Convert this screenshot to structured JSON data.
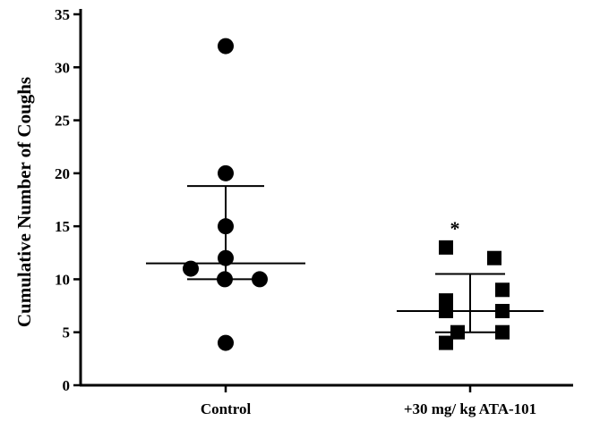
{
  "chart_data": {
    "type": "scatter",
    "title": "",
    "xlabel": "",
    "ylabel": "Cumulative Number of Coughs",
    "ylim": [
      0,
      35
    ],
    "yticks": [
      0,
      5,
      10,
      15,
      20,
      25,
      30,
      35
    ],
    "grid": false,
    "categories": [
      "Control",
      "+30 mg/ kg ATA-101"
    ],
    "groups": [
      {
        "category": "Control",
        "marker": "circle",
        "points": [
          32,
          20,
          15,
          12,
          11,
          10,
          10,
          4
        ],
        "median": 11.5,
        "error_low": 10,
        "error_high": 18.8
      },
      {
        "category": "+30 mg/ kg ATA-101",
        "marker": "square",
        "points": [
          13,
          12,
          9,
          8,
          7,
          7,
          5,
          5,
          4
        ],
        "median": 7,
        "error_low": 5,
        "error_high": 10.5
      }
    ],
    "annotations": [
      {
        "category": "+30 mg/ kg ATA-101",
        "text": "*"
      }
    ]
  }
}
